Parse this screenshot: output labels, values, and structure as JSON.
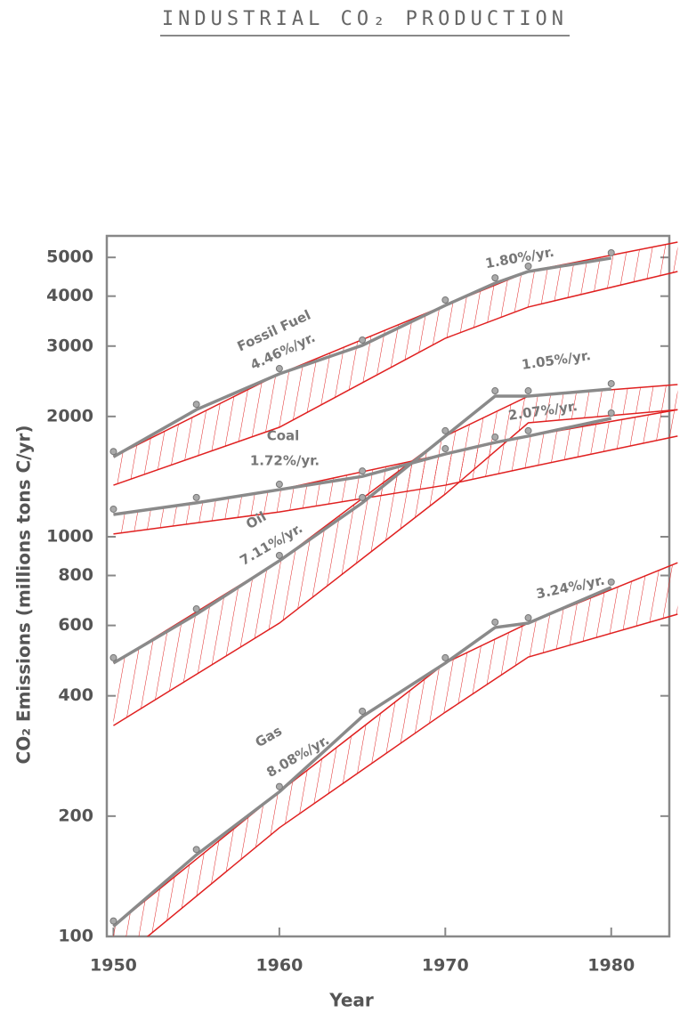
{
  "chart_data": {
    "type": "line",
    "title": "INDUSTRIAL CO₂ PRODUCTION",
    "xlabel": "Year",
    "ylabel": "CO₂ Emissions (millions tons C/yr)",
    "log_y": true,
    "xlim": [
      1949.6,
      1983.5
    ],
    "xticks": [
      1950,
      1960,
      1970,
      1980
    ],
    "ylim": [
      100,
      5660
    ],
    "yticks": [
      100,
      200,
      400,
      600,
      800,
      1000,
      2000,
      3000,
      4000,
      5000
    ],
    "x": [
      1950,
      1955,
      1960,
      1965,
      1970,
      1973,
      1975,
      1980
    ],
    "series": [
      {
        "name": "Fossil Fuel",
        "color": "#8a8a8a",
        "values": [
          1585,
          2080,
          2556,
          3013,
          3793,
          4310,
          4610,
          4980
        ]
      },
      {
        "name": "Coal",
        "color": "#8a8a8a",
        "values": [
          1137,
          1216,
          1312,
          1416,
          1611,
          1722,
          1786,
          1978
        ]
      },
      {
        "name": "Oil",
        "color": "#8a8a8a",
        "values": [
          483,
          640,
          871,
          1216,
          1786,
          2248,
          2248,
          2343
        ]
      },
      {
        "name": "Gas",
        "color": "#8a8a8a",
        "values": [
          106,
          160,
          230,
          355,
          483,
          593,
          608,
          747
        ]
      }
    ],
    "bands": [
      {
        "color": "#e02020",
        "x": [
          1950,
          1960,
          1970,
          1975,
          1984
        ],
        "upper": [
          1585,
          2556,
          3793,
          4610,
          5460
        ],
        "lower": [
          1346,
          1879,
          3138,
          3757,
          4610
        ]
      },
      {
        "color": "#e02020",
        "x": [
          1950,
          1960,
          1970,
          1975,
          1984
        ],
        "upper": [
          1137,
          1312,
          1611,
          1786,
          2080
        ],
        "lower": [
          1016,
          1154,
          1346,
          1492,
          1786
        ]
      },
      {
        "color": "#e02020",
        "x": [
          1950,
          1960,
          1970,
          1975,
          1984
        ],
        "upper": [
          483,
          871,
          1786,
          2248,
          2404
        ],
        "lower": [
          337,
          608,
          1279,
          1928,
          2080
        ]
      },
      {
        "color": "#e02020",
        "x": [
          1950,
          1960,
          1970,
          1975,
          1984
        ],
        "upper": [
          106,
          230,
          483,
          608,
          861
        ],
        "lower": [
          85,
          187,
          364,
          500,
          640
        ]
      }
    ],
    "annotations": [
      "4.46%/yr.",
      "1.80%/yr.",
      "1.72%/yr.",
      "1.05%/yr.",
      "2.07%/yr.",
      "7.11%/yr.",
      "3.24%/yr.",
      "8.08%/yr."
    ]
  }
}
